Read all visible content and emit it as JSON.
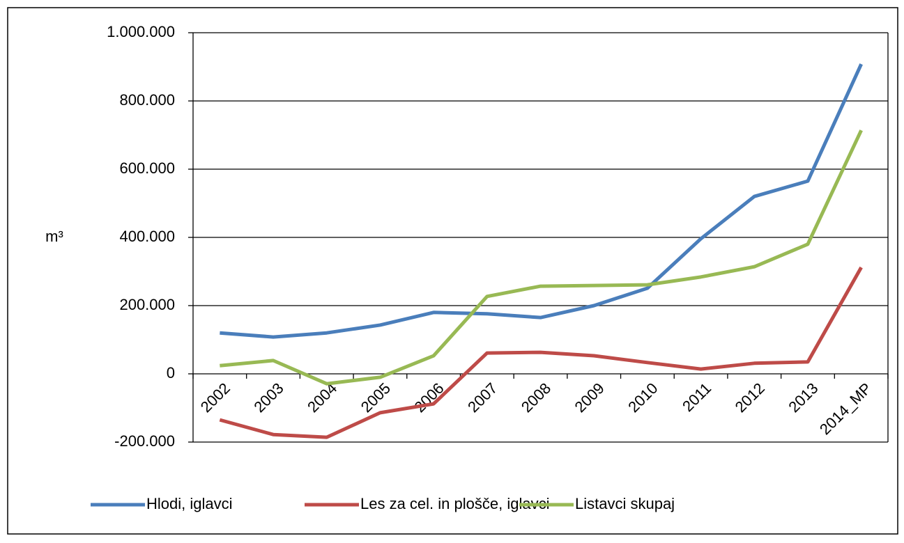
{
  "chart_data": {
    "type": "line",
    "y_label": "m³",
    "categories": [
      "2002",
      "2003",
      "2004",
      "2005",
      "2006",
      "2007",
      "2008",
      "2009",
      "2010",
      "2011",
      "2012",
      "2013",
      "2014_MP"
    ],
    "series": [
      {
        "name": "Hlodi, iglavci",
        "color": "#4a7ebb",
        "values": [
          120000,
          108000,
          120000,
          143000,
          180000,
          176000,
          165000,
          200000,
          251000,
          396000,
          520000,
          565000,
          908000
        ]
      },
      {
        "name": "Les za cel. in plošče, iglavci",
        "color": "#be4b48",
        "values": [
          -135000,
          -178000,
          -186000,
          -114000,
          -88000,
          61000,
          63000,
          53000,
          33000,
          14000,
          31000,
          35000,
          312000
        ]
      },
      {
        "name": "Listavci skupaj",
        "color": "#98b954",
        "values": [
          24000,
          39000,
          -29000,
          -10000,
          53000,
          227000,
          257000,
          259000,
          261000,
          284000,
          314000,
          380000,
          714000
        ]
      }
    ],
    "ylim": [
      -200000,
      1000000
    ],
    "yticks": [
      {
        "value": -200000,
        "label": "-200.000"
      },
      0,
      {
        "value": 200000,
        "label": "200.000"
      },
      {
        "value": 400000,
        "label": "400.000"
      },
      {
        "value": 600000,
        "label": "600.000"
      },
      {
        "value": 800000,
        "label": "800.000"
      },
      {
        "value": 1000000,
        "label": "1.000.000"
      }
    ],
    "grid": true,
    "legend": "bottom"
  }
}
